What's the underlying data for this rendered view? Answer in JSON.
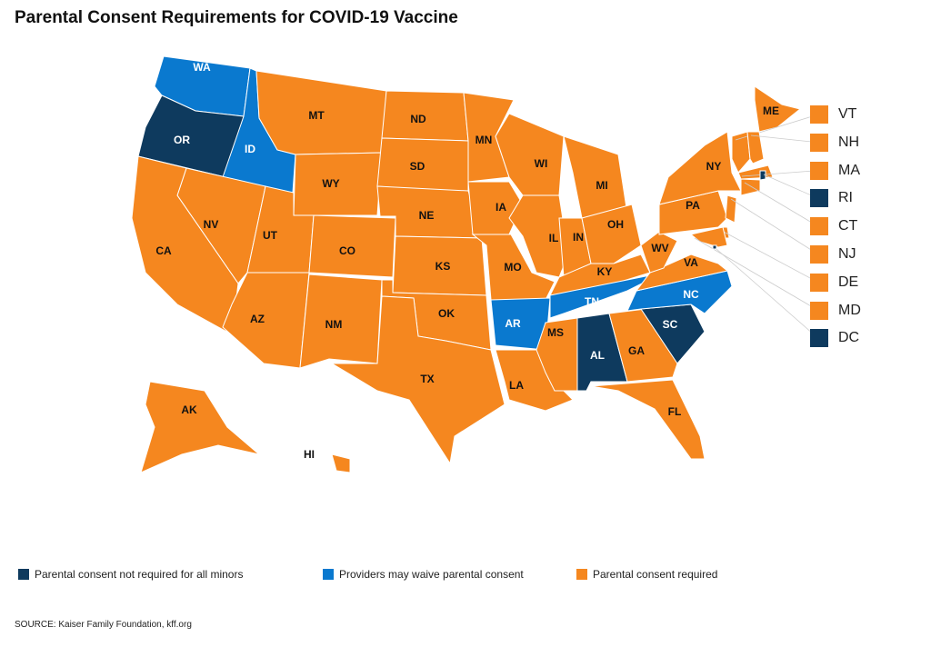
{
  "title": "Parental Consent Requirements for COVID-19 Vaccine",
  "colors": {
    "not_required": "#0E3A5E",
    "may_waive": "#0A79CF",
    "required": "#F5871F"
  },
  "legend": [
    {
      "key": "not_required",
      "label": "Parental consent not required for all minors"
    },
    {
      "key": "may_waive",
      "label": "Providers may waive parental consent"
    },
    {
      "key": "required",
      "label": "Parental consent required"
    }
  ],
  "states": {
    "WA": "may_waive",
    "OR": "not_required",
    "ID": "may_waive",
    "MT": "required",
    "WY": "required",
    "NV": "required",
    "CA": "required",
    "UT": "required",
    "CO": "required",
    "AZ": "required",
    "NM": "required",
    "ND": "required",
    "SD": "required",
    "NE": "required",
    "KS": "required",
    "OK": "required",
    "TX": "required",
    "MN": "required",
    "IA": "required",
    "MO": "required",
    "AR": "may_waive",
    "LA": "required",
    "WI": "required",
    "IL": "required",
    "MI": "required",
    "IN": "required",
    "OH": "required",
    "KY": "required",
    "TN": "may_waive",
    "MS": "required",
    "AL": "not_required",
    "GA": "required",
    "FL": "required",
    "SC": "not_required",
    "NC": "may_waive",
    "VA": "required",
    "WV": "required",
    "PA": "required",
    "NY": "required",
    "ME": "required",
    "AK": "required",
    "HI": "required"
  },
  "small_states": [
    {
      "abbr": "VT",
      "category": "required"
    },
    {
      "abbr": "NH",
      "category": "required"
    },
    {
      "abbr": "MA",
      "category": "required"
    },
    {
      "abbr": "RI",
      "category": "not_required"
    },
    {
      "abbr": "CT",
      "category": "required"
    },
    {
      "abbr": "NJ",
      "category": "required"
    },
    {
      "abbr": "DE",
      "category": "required"
    },
    {
      "abbr": "MD",
      "category": "required"
    },
    {
      "abbr": "DC",
      "category": "not_required"
    }
  ],
  "source": "SOURCE: Kaiser Family Foundation, kff.org"
}
